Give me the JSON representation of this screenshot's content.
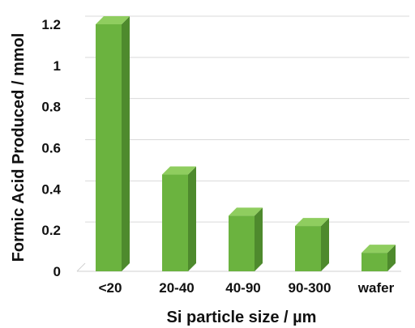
{
  "chart_data": {
    "type": "bar",
    "title": "",
    "xlabel": "Si particle size / µm",
    "ylabel": "Formic Acid Produced / mmol",
    "categories": [
      "<20",
      "20-40",
      "40-90",
      "90-300",
      "wafer"
    ],
    "values": [
      1.2,
      0.47,
      0.27,
      0.22,
      0.09
    ],
    "ylim": [
      0,
      1.2
    ],
    "yticks": [
      "0",
      "0.2",
      "0.4",
      "0.6",
      "0.8",
      "1",
      "1.2"
    ],
    "grid": true,
    "legend": "none",
    "style": "3d-column",
    "colors": {
      "bar_front": "#6bb33f",
      "bar_side": "#4e8a2d",
      "bar_top": "#8fcd5f",
      "grid": "#d9d9d9"
    }
  }
}
